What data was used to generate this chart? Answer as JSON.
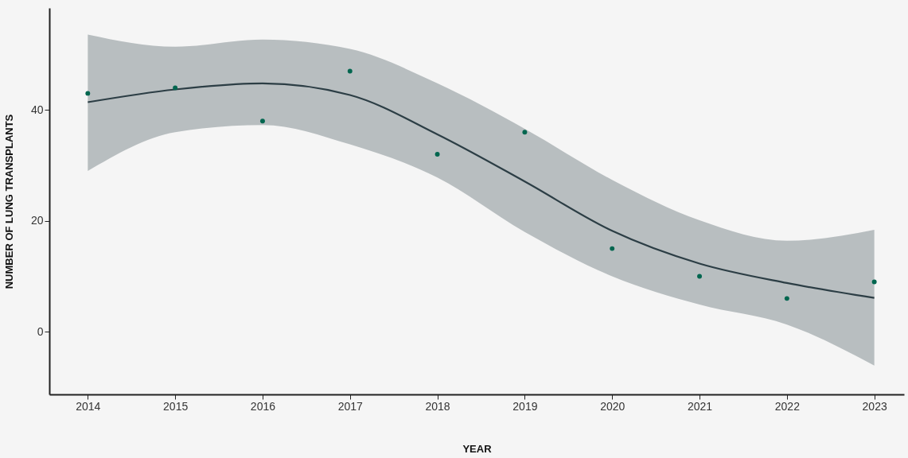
{
  "chart_data": {
    "type": "scatter",
    "xlabel": "YEAR",
    "ylabel": "NUMBER OF LUNG TRANSPLANTS",
    "x": [
      2014,
      2015,
      2016,
      2017,
      2018,
      2019,
      2020,
      2021,
      2022,
      2023
    ],
    "series": [
      {
        "color": "#00664f",
        "marker": "circle",
        "values": [
          43,
          44,
          38,
          47,
          32,
          36,
          15,
          10,
          6,
          9
        ]
      },
      {
        "type": "line",
        "marker": "none",
        "color": "#2c3e45",
        "values": [
          41.4,
          43.7,
          44.8,
          42.7,
          35.6,
          27.1,
          18.2,
          12.3,
          8.8,
          6.1
        ],
        "lower": [
          29.0,
          36.0,
          37.3,
          33.8,
          27.8,
          18.0,
          10.0,
          4.9,
          1.3,
          -6.1
        ],
        "upper": [
          53.6,
          51.4,
          52.7,
          51.0,
          44.8,
          36.6,
          27.4,
          20.1,
          16.4,
          18.4
        ]
      }
    ],
    "xlim": [
      2013.56,
      2023.34
    ],
    "xticks": [
      2014,
      2015,
      2016,
      2017,
      2018,
      2019,
      2020,
      2021,
      2022,
      2023
    ],
    "ylim": [
      -11.3,
      58.4
    ],
    "yticks": [
      0,
      20,
      40
    ],
    "grid": false,
    "line_style": "solid"
  }
}
